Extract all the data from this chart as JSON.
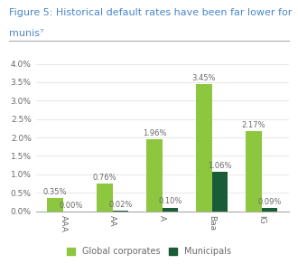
{
  "title_line1": "Figure 5: Historical default rates have been far lower for",
  "title_line2": "munis⁷",
  "categories": [
    "AAA",
    "AA",
    "A",
    "Baa",
    "IG"
  ],
  "corporates": [
    0.35,
    0.76,
    1.96,
    3.45,
    2.17
  ],
  "municipals": [
    0.0,
    0.02,
    0.1,
    1.06,
    0.09
  ],
  "corp_color": "#8dc63f",
  "muni_color": "#1a5c38",
  "ylim": [
    0,
    4.3
  ],
  "yticks": [
    0.0,
    0.5,
    1.0,
    1.5,
    2.0,
    2.5,
    3.0,
    3.5,
    4.0
  ],
  "ytick_labels": [
    "0.0%",
    "0.5%",
    "1.0%",
    "1.5%",
    "2.0%",
    "2.5%",
    "3.0%",
    "3.5%",
    "4.0%"
  ],
  "bar_width": 0.32,
  "legend_labels": [
    "Global corporates",
    "Municipals"
  ],
  "title_color": "#4a86c8",
  "axis_label_color": "#6a6a6a",
  "value_label_color": "#6a6a6a",
  "background_color": "#ffffff",
  "title_fontsize": 8.0,
  "tick_fontsize": 6.5,
  "value_fontsize": 6.0,
  "legend_fontsize": 7.0,
  "separator_color": "#aaaaaa",
  "grid_color": "#dddddd"
}
